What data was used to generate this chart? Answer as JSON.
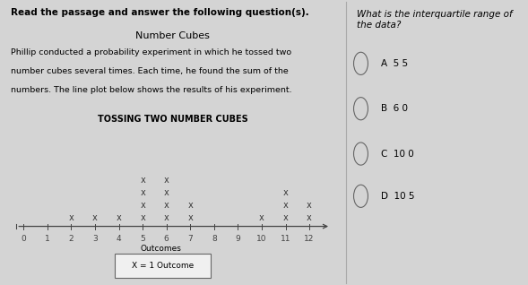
{
  "title_question": "What is the interquartile range of the data?",
  "left_panel_title": "Read the passage and answer the following question(s).",
  "passage_title": "Number Cubes",
  "passage_lines": [
    "Phillip conducted a probability experiment in which he tossed two",
    "number cubes several times. Each time, he found the sum of the",
    "numbers. The line plot below shows the results of his experiment."
  ],
  "plot_title": "TOSSING TWO NUMBER CUBES",
  "xlabel": "Outcomes",
  "legend_label": "X = 1 Outcome",
  "x_min": 0,
  "x_max": 12,
  "line_plot_data": {
    "2": 1,
    "3": 1,
    "4": 1,
    "5": 4,
    "6": 4,
    "7": 2,
    "10": 1,
    "11": 3,
    "12": 2
  },
  "choices": [
    "A  5 5",
    "B  6 0",
    "C  10 0",
    "D  10 5"
  ],
  "bg_color": "#d4d4d4",
  "left_bg": "#f0f0f0",
  "right_bg": "#e8e8e8",
  "marker_color": "#333333",
  "axis_color": "#444444",
  "lp_title_fontsize": 7.5,
  "passage_title_fontsize": 8,
  "passage_text_fontsize": 6.8,
  "plot_title_fontsize": 7,
  "tick_fontsize": 6.5,
  "marker_fontsize": 7,
  "label_fontsize": 6.5,
  "question_fontsize": 7.5,
  "choice_fontsize": 7.5
}
